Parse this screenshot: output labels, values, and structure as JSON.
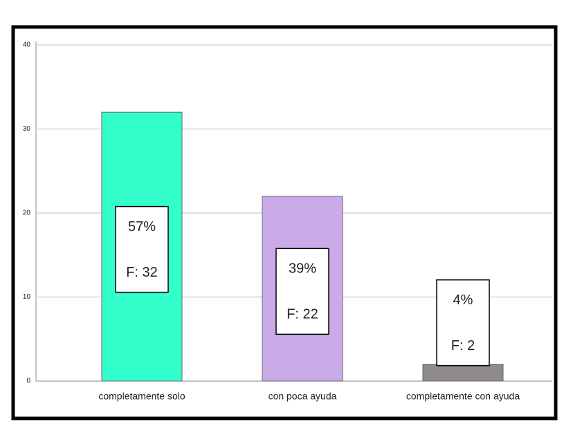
{
  "chart_data": {
    "type": "bar",
    "categories": [
      "completamente solo",
      "con poca ayuda",
      "completamente con ayuda"
    ],
    "values": [
      32,
      22,
      2
    ],
    "value_labels": [
      "F: 32",
      "F: 22",
      "F: 2"
    ],
    "percent_labels": [
      "57%",
      "39%",
      "4%"
    ],
    "colors": [
      "#33ffcc",
      "#cbaae8",
      "#8e8a8a"
    ],
    "ylim": [
      0,
      40
    ],
    "yticks": [
      0,
      10,
      20,
      30,
      40
    ],
    "grid": true
  }
}
